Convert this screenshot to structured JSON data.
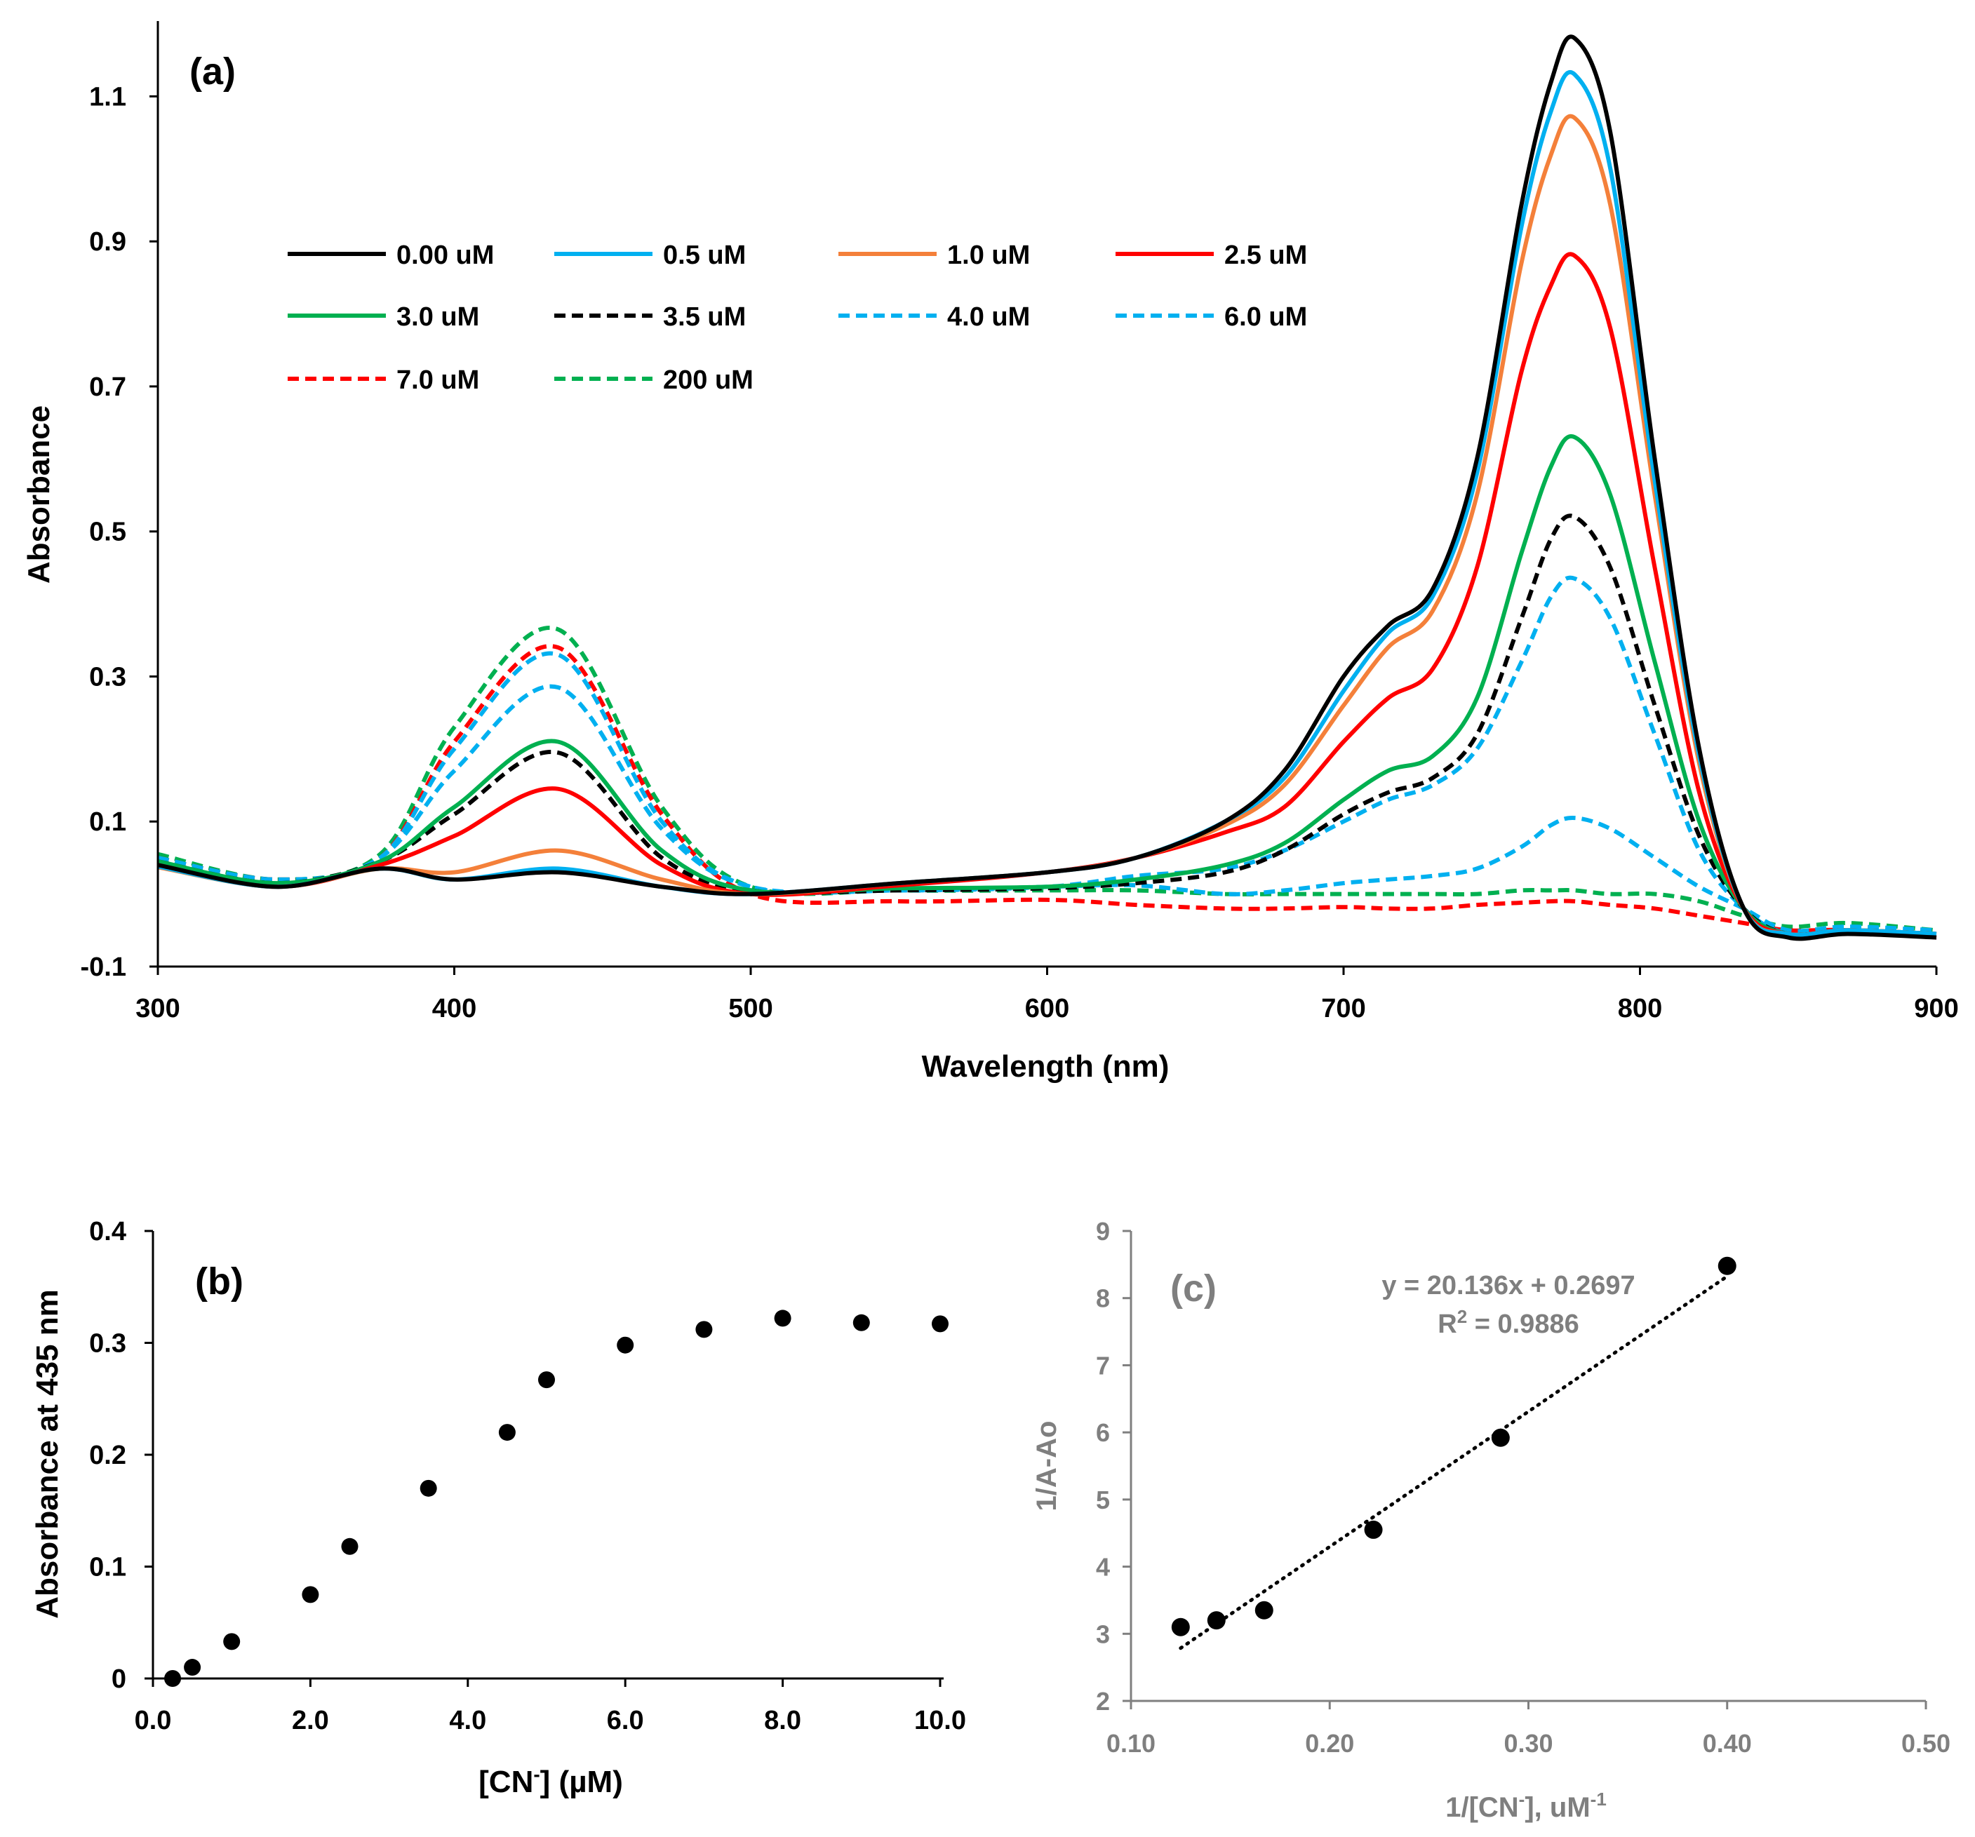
{
  "chart_data": [
    {
      "panel": "(a)",
      "type": "line",
      "xlabel": "Wavelength (nm)",
      "ylabel": "Absorbance",
      "xlim": [
        300,
        900
      ],
      "ylim": [
        -0.1,
        1.2
      ],
      "xticks": [
        300,
        400,
        500,
        600,
        700,
        800,
        900
      ],
      "xtick_labels": [
        "300",
        "400",
        "500",
        "600",
        "700",
        "800",
        "900"
      ],
      "yticks": [
        -0.1,
        0.1,
        0.3,
        0.5,
        0.7,
        0.9,
        1.1
      ],
      "ytick_labels": [
        "-0.1",
        "0.1",
        "0.3",
        "0.5",
        "0.7",
        "0.9",
        "1.1"
      ],
      "x": [
        300,
        340,
        375,
        400,
        435,
        470,
        500,
        550,
        600,
        630,
        660,
        680,
        700,
        715,
        730,
        745,
        760,
        770,
        778,
        790,
        805,
        820,
        835,
        850,
        870,
        900
      ],
      "series": [
        {
          "name": "0.00 uM",
          "color": "#000000",
          "dash": false,
          "values": [
            0.04,
            0.01,
            0.035,
            0.02,
            0.03,
            0.01,
            0.0,
            0.015,
            0.03,
            0.05,
            0.1,
            0.17,
            0.3,
            0.37,
            0.42,
            0.6,
            0.95,
            1.12,
            1.18,
            1.05,
            0.6,
            0.2,
            -0.02,
            -0.06,
            -0.055,
            -0.06
          ]
        },
        {
          "name": "0.5 uM",
          "color": "#00b0f0",
          "dash": false,
          "values": [
            0.038,
            0.01,
            0.035,
            0.02,
            0.035,
            0.01,
            0.0,
            0.015,
            0.03,
            0.05,
            0.1,
            0.16,
            0.28,
            0.36,
            0.41,
            0.58,
            0.92,
            1.08,
            1.13,
            1.0,
            0.57,
            0.19,
            -0.02,
            -0.055,
            -0.05,
            -0.055
          ]
        },
        {
          "name": "1.0 uM",
          "color": "#f4803a",
          "dash": false,
          "values": [
            0.037,
            0.01,
            0.035,
            0.03,
            0.06,
            0.02,
            0.0,
            0.015,
            0.03,
            0.05,
            0.095,
            0.15,
            0.26,
            0.34,
            0.39,
            0.55,
            0.87,
            1.02,
            1.07,
            0.95,
            0.55,
            0.18,
            -0.02,
            -0.055,
            -0.05,
            -0.055
          ]
        },
        {
          "name": "2.5 uM",
          "color": "#ff0000",
          "dash": false,
          "values": [
            0.04,
            0.01,
            0.04,
            0.08,
            0.145,
            0.04,
            0.0,
            0.012,
            0.03,
            0.05,
            0.085,
            0.12,
            0.21,
            0.27,
            0.31,
            0.45,
            0.72,
            0.84,
            0.88,
            0.78,
            0.45,
            0.14,
            -0.02,
            -0.055,
            -0.05,
            -0.055
          ]
        },
        {
          "name": "3.0 uM",
          "color": "#00b050",
          "dash": false,
          "values": [
            0.045,
            0.015,
            0.045,
            0.12,
            0.21,
            0.06,
            0.005,
            0.008,
            0.01,
            0.02,
            0.04,
            0.07,
            0.13,
            0.17,
            0.19,
            0.27,
            0.47,
            0.59,
            0.63,
            0.55,
            0.32,
            0.1,
            -0.02,
            -0.055,
            -0.05,
            -0.055
          ]
        },
        {
          "name": "3.5 uM",
          "color": "#000000",
          "dash": true,
          "values": [
            0.045,
            0.015,
            0.045,
            0.11,
            0.195,
            0.05,
            0.005,
            0.005,
            0.008,
            0.015,
            0.03,
            0.06,
            0.11,
            0.14,
            0.16,
            0.22,
            0.38,
            0.49,
            0.52,
            0.45,
            0.26,
            0.08,
            -0.02,
            -0.055,
            -0.05,
            -0.055
          ]
        },
        {
          "name": "4.0 uM",
          "color": "#00b0f0",
          "dash": true,
          "values": [
            0.045,
            0.015,
            0.05,
            0.17,
            0.285,
            0.09,
            0.01,
            0.005,
            0.01,
            0.025,
            0.035,
            0.06,
            0.1,
            0.13,
            0.15,
            0.2,
            0.32,
            0.41,
            0.435,
            0.38,
            0.22,
            0.06,
            -0.02,
            -0.055,
            -0.05,
            -0.055
          ]
        },
        {
          "name": "6.0 uM",
          "color": "#00b0f0",
          "dash": true,
          "values": [
            0.05,
            0.02,
            0.05,
            0.2,
            0.33,
            0.1,
            0.01,
            0.005,
            0.01,
            0.012,
            0.0,
            0.005,
            0.015,
            0.02,
            0.025,
            0.035,
            0.065,
            0.095,
            0.105,
            0.09,
            0.05,
            0.01,
            -0.02,
            -0.05,
            -0.045,
            -0.05
          ]
        },
        {
          "name": "7.0 uM",
          "color": "#ff0000",
          "dash": true,
          "values": [
            0.05,
            0.02,
            0.05,
            0.21,
            0.34,
            0.11,
            0.0,
            -0.01,
            -0.008,
            -0.015,
            -0.02,
            -0.02,
            -0.018,
            -0.02,
            -0.02,
            -0.015,
            -0.012,
            -0.01,
            -0.01,
            -0.015,
            -0.02,
            -0.03,
            -0.04,
            -0.05,
            -0.05,
            -0.06
          ]
        },
        {
          "name": "200 uM",
          "color": "#00b050",
          "dash": true,
          "values": [
            0.055,
            0.02,
            0.055,
            0.23,
            0.365,
            0.12,
            0.01,
            0.005,
            0.005,
            0.005,
            0.0,
            0.0,
            0.0,
            0.0,
            0.0,
            0.0,
            0.005,
            0.005,
            0.005,
            0.0,
            0.0,
            -0.01,
            -0.03,
            -0.045,
            -0.04,
            -0.05
          ]
        }
      ],
      "legend": "top-left, 4 columns"
    },
    {
      "panel": "(b)",
      "type": "scatter",
      "xlabel_main": "[CN",
      "xlabel_sup": "-",
      "xlabel_tail": "] (µM)",
      "ylabel": "Absorbance at 435 nm",
      "xlim": [
        0,
        10
      ],
      "ylim": [
        0,
        0.4
      ],
      "xticks": [
        0,
        2,
        4,
        6,
        8,
        10
      ],
      "xtick_labels": [
        "0.0",
        "2.0",
        "4.0",
        "6.0",
        "8.0",
        "10.0"
      ],
      "yticks": [
        0,
        0.1,
        0.2,
        0.3,
        0.4
      ],
      "ytick_labels": [
        "0",
        "0.1",
        "0.2",
        "0.3",
        "0.4"
      ],
      "x": [
        0.25,
        0.5,
        1.0,
        2.0,
        2.5,
        3.5,
        4.5,
        5.0,
        6.0,
        7.0,
        8.0,
        9.0,
        10.0
      ],
      "y": [
        0.0,
        0.01,
        0.033,
        0.075,
        0.118,
        0.17,
        0.22,
        0.267,
        0.298,
        0.312,
        0.322,
        0.318,
        0.317
      ]
    },
    {
      "panel": "(c)",
      "type": "scatter",
      "xlabel_main": "1/[CN",
      "xlabel_sup1": "-",
      "xlabel_mid": "], uM",
      "xlabel_sup2": "-1",
      "ylabel": "1/A-Ao",
      "xlim": [
        0.1,
        0.5
      ],
      "ylim": [
        2,
        9
      ],
      "xticks": [
        0.1,
        0.2,
        0.3,
        0.4,
        0.5
      ],
      "xtick_labels": [
        "0.10",
        "0.20",
        "0.30",
        "0.40",
        "0.50"
      ],
      "yticks": [
        2,
        3,
        4,
        5,
        6,
        7,
        8,
        9
      ],
      "ytick_labels": [
        "2",
        "3",
        "4",
        "5",
        "6",
        "7",
        "8",
        "9"
      ],
      "x": [
        0.125,
        0.143,
        0.167,
        0.222,
        0.286,
        0.4
      ],
      "y": [
        3.1,
        3.2,
        3.35,
        4.55,
        5.92,
        8.48
      ],
      "trendline": {
        "slope": 20.136,
        "intercept": 0.2697,
        "x_range": [
          0.125,
          0.4
        ]
      },
      "equation": "y = 20.136x + 0.2697",
      "r2_label": "R",
      "r2_sup": "2",
      "r2_value": " = 0.9886"
    }
  ]
}
